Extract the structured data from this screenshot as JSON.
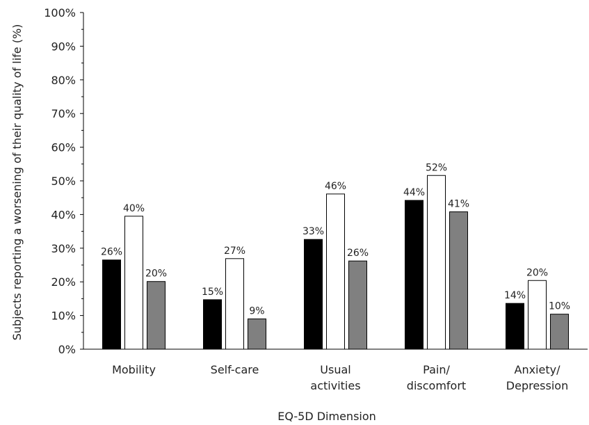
{
  "chart_data": {
    "type": "bar",
    "title": "",
    "xlabel": "EQ-5D Dimension",
    "ylabel": "Subjects reporting a worsening  of their quality of life (%)",
    "ylim": [
      0,
      100
    ],
    "y_ticks": [
      "0%",
      "10%",
      "20%",
      "30%",
      "40%",
      "50%",
      "60%",
      "70%",
      "80%",
      "90%",
      "100%"
    ],
    "categories": [
      [
        "Mobility"
      ],
      [
        "Self-care"
      ],
      [
        "Usual",
        "activities"
      ],
      [
        "Pain/",
        "discomfort"
      ],
      [
        "Anxiety/",
        "Depression"
      ]
    ],
    "grid": false,
    "legend": "none",
    "series": [
      {
        "fill": "#000000",
        "values": [
          26.5,
          14.7,
          32.6,
          44.2,
          13.6
        ],
        "labels": [
          "26%",
          "15%",
          "33%",
          "44%",
          "14%"
        ]
      },
      {
        "fill": "#ffffff",
        "values": [
          39.5,
          26.9,
          46.1,
          51.6,
          20.4
        ],
        "labels": [
          "40%",
          "27%",
          "46%",
          "52%",
          "20%"
        ]
      },
      {
        "fill": "#808080",
        "values": [
          20.1,
          9.0,
          26.2,
          40.8,
          10.4
        ],
        "labels": [
          "20%",
          "9%",
          "26%",
          "41%",
          "10%"
        ]
      }
    ]
  }
}
